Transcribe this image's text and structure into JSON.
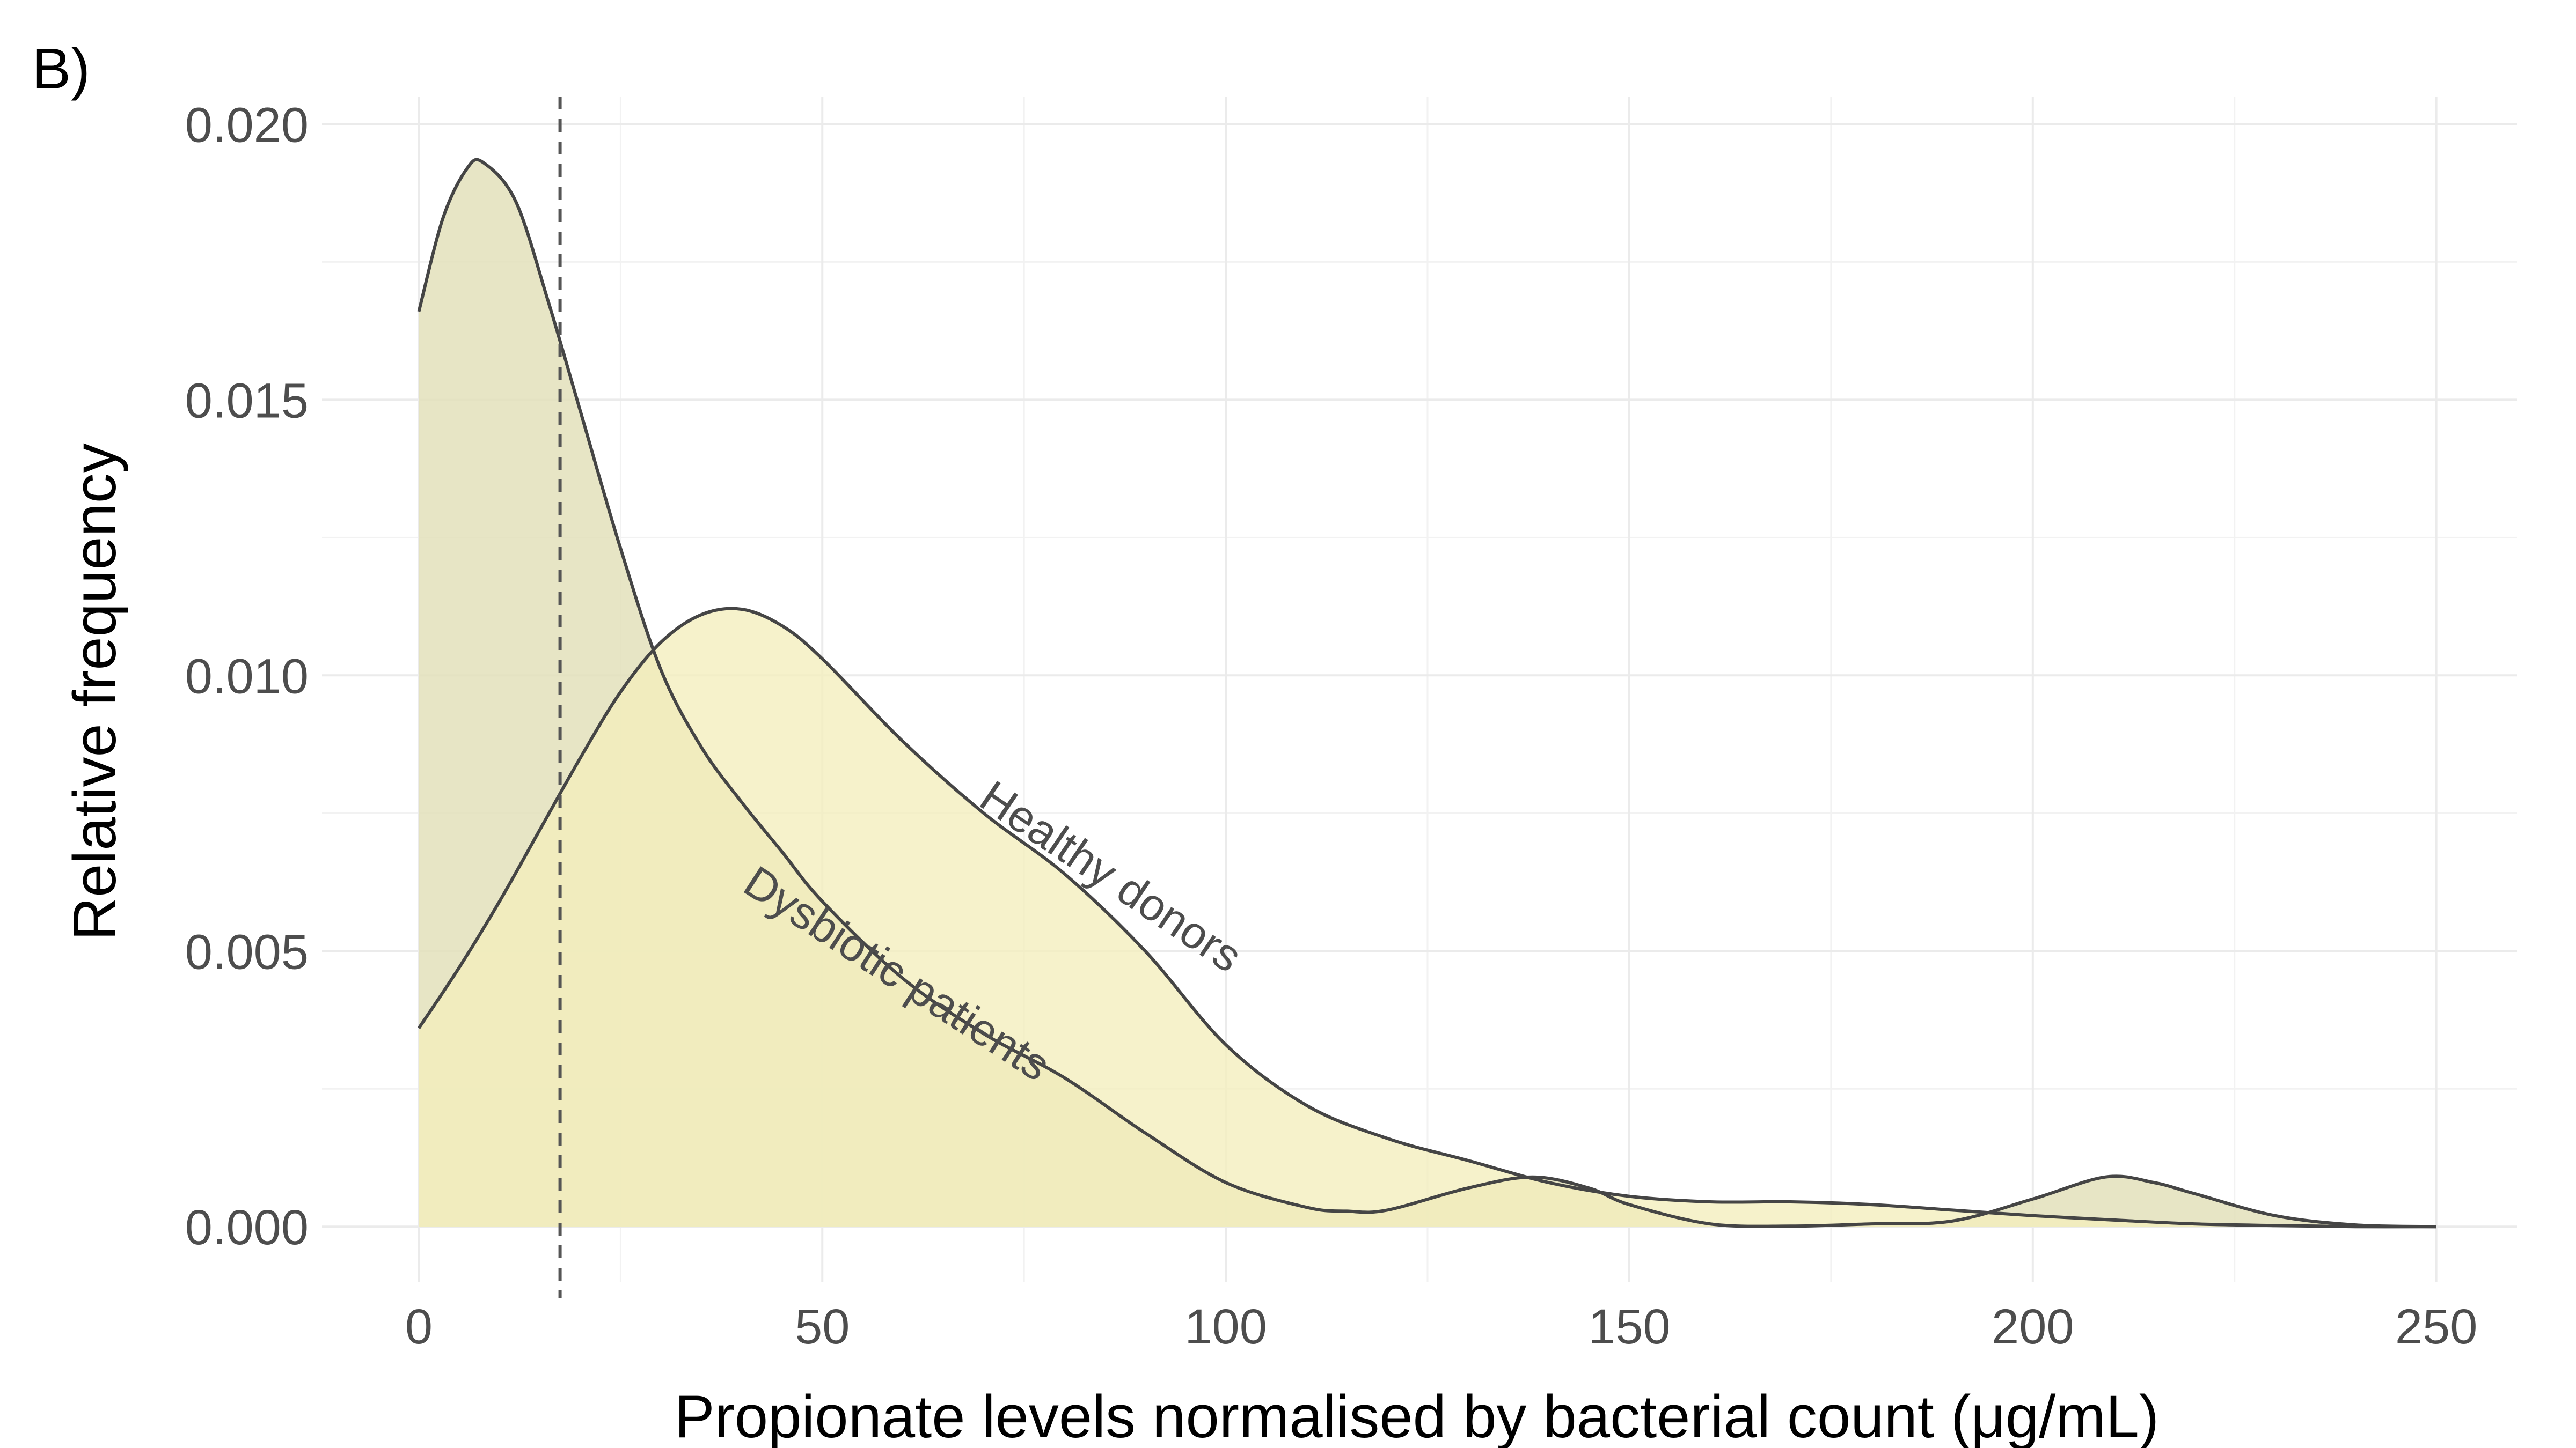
{
  "panel_label": "B)",
  "chart_data": {
    "type": "area",
    "title": "",
    "xlabel": "Propionate levels normalised by bacterial count (μg/mL)",
    "ylabel": "Relative frequency",
    "xlim": [
      -12,
      260
    ],
    "ylim": [
      -0.001,
      0.0205
    ],
    "x_ticks": [
      0,
      50,
      100,
      150,
      200,
      250
    ],
    "x_tick_labels": [
      "0",
      "50",
      "100",
      "150",
      "200",
      "250"
    ],
    "y_ticks": [
      0.0,
      0.005,
      0.01,
      0.015,
      0.02
    ],
    "y_tick_labels": [
      "0.000",
      "0.005",
      "0.010",
      "0.015",
      "0.020"
    ],
    "grid": true,
    "legend": "none (direct labels on curves)",
    "reference_line": {
      "x": 17.5,
      "style": "dashed"
    },
    "series": [
      {
        "name": "Dysbiotic patients",
        "color": "#e3e0bb",
        "x": [
          0,
          3,
          6,
          8,
          12,
          16,
          20,
          25,
          30,
          35,
          40,
          45,
          50,
          60,
          70,
          80,
          90,
          100,
          110,
          115,
          120,
          130,
          138,
          145,
          150,
          160,
          170,
          180,
          190,
          200,
          209,
          215,
          220,
          230,
          240,
          250
        ],
        "y": [
          0.0166,
          0.0183,
          0.0192,
          0.0193,
          0.0186,
          0.0168,
          0.0148,
          0.0123,
          0.0101,
          0.0087,
          0.0077,
          0.0068,
          0.0059,
          0.0045,
          0.0035,
          0.0027,
          0.0017,
          0.0008,
          0.00035,
          0.00028,
          0.0003,
          0.0007,
          0.0009,
          0.0007,
          0.0004,
          5e-05,
          1e-05,
          5e-05,
          0.0001,
          0.0005,
          0.0009,
          0.0008,
          0.0006,
          0.0002,
          3e-05,
          0.0
        ]
      },
      {
        "name": "Healthy donors",
        "color": "#f3eebd",
        "x": [
          0,
          5,
          10,
          15,
          20,
          25,
          30,
          35,
          40,
          45,
          50,
          60,
          70,
          80,
          90,
          100,
          110,
          120,
          130,
          140,
          150,
          160,
          170,
          180,
          190,
          200,
          210,
          220,
          230,
          240,
          250
        ],
        "y": [
          0.0036,
          0.0047,
          0.0059,
          0.0072,
          0.0085,
          0.0097,
          0.0106,
          0.0111,
          0.0112,
          0.0109,
          0.0103,
          0.0088,
          0.0075,
          0.0064,
          0.005,
          0.0033,
          0.0022,
          0.0016,
          0.0012,
          0.0008,
          0.00055,
          0.00045,
          0.00045,
          0.0004,
          0.0003,
          0.0002,
          0.00012,
          5e-05,
          2e-05,
          0.0,
          0.0
        ]
      }
    ]
  }
}
